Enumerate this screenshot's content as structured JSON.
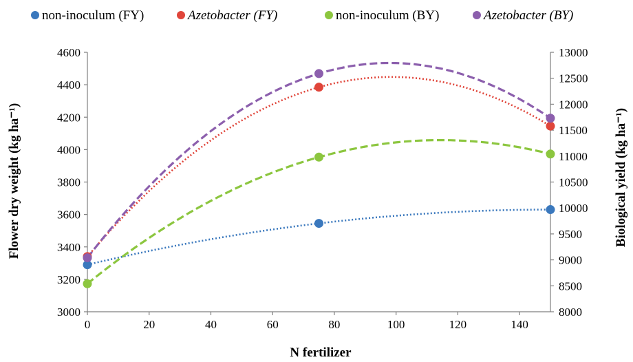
{
  "chart_data": {
    "type": "line",
    "xlabel": "N fertilizer",
    "ylabel_left": "Flower dry weight (kg ha⁻¹)",
    "ylabel_right": "Biological yield (kg ha⁻¹)",
    "x_ticks": [
      "0",
      "20",
      "40",
      "60",
      "80",
      "100",
      "120",
      "140"
    ],
    "y_left_ticks": [
      "3000",
      "3200",
      "3400",
      "3600",
      "3800",
      "4000",
      "4200",
      "4400",
      "4600"
    ],
    "y_right_ticks": [
      "8000",
      "8500",
      "9000",
      "9500",
      "10000",
      "10500",
      "11000",
      "11500",
      "12000",
      "12500",
      "13000"
    ],
    "xlim": [
      0,
      150
    ],
    "ylim_left": [
      3000,
      4600
    ],
    "ylim_right": [
      8000,
      13000
    ],
    "legend_position": "top",
    "grid": false,
    "series": [
      {
        "name": "non-inoculum (FY)",
        "axis": "left",
        "color": "#3a78bd",
        "style": "dotted",
        "italic": false,
        "x": [
          0,
          75,
          150
        ],
        "values": [
          3290,
          3545,
          3630
        ]
      },
      {
        "name": "Azetobacter (FY)",
        "axis": "left",
        "color": "#e0453a",
        "style": "dotted",
        "italic": true,
        "x": [
          0,
          75,
          150
        ],
        "values": [
          3340,
          4385,
          4145
        ]
      },
      {
        "name": "non-inoculum (BY)",
        "axis": "right",
        "color": "#8cc63f",
        "style": "dashed",
        "italic": false,
        "x": [
          0,
          75,
          150
        ],
        "values": [
          8540,
          10980,
          11040
        ]
      },
      {
        "name": "Azetobacter (BY)",
        "axis": "right",
        "color": "#8c5fad",
        "style": "dashed",
        "italic": true,
        "x": [
          0,
          75,
          150
        ],
        "values": [
          9040,
          12590,
          11730
        ]
      }
    ]
  }
}
